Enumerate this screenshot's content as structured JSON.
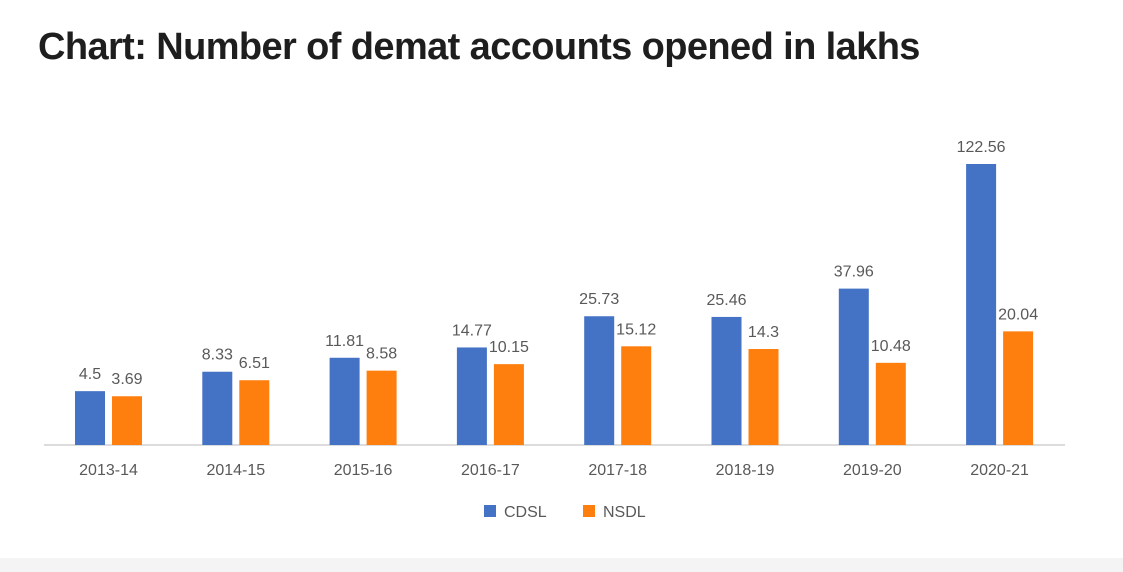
{
  "chart_data": {
    "type": "bar",
    "title": "Chart: Number of demat accounts opened in lakhs",
    "categories": [
      "2013-14",
      "2014-15",
      "2015-16",
      "2016-17",
      "2017-18",
      "2018-19",
      "2019-20",
      "2020-21"
    ],
    "series": [
      {
        "name": "CDSL",
        "color": "#4472c4",
        "values": [
          4.5,
          8.33,
          11.81,
          14.77,
          25.73,
          25.46,
          37.96,
          122.56
        ]
      },
      {
        "name": "NSDL",
        "color": "#ff7f0e",
        "values": [
          3.69,
          6.51,
          8.58,
          10.15,
          15.12,
          14.3,
          10.48,
          20.04
        ]
      }
    ],
    "data_labels": [
      [
        "4.5",
        "8.33",
        "11.81",
        "14.77",
        "25.73",
        "25.46",
        "37.96",
        "122.56"
      ],
      [
        "3.69",
        "6.51",
        "8.58",
        "10.15",
        "15.12",
        "14.3",
        "10.48",
        "20.04"
      ]
    ],
    "xlabel": "",
    "ylabel": "",
    "y_axis_scale": "non-linear",
    "grid": false,
    "legend_position": "bottom"
  }
}
